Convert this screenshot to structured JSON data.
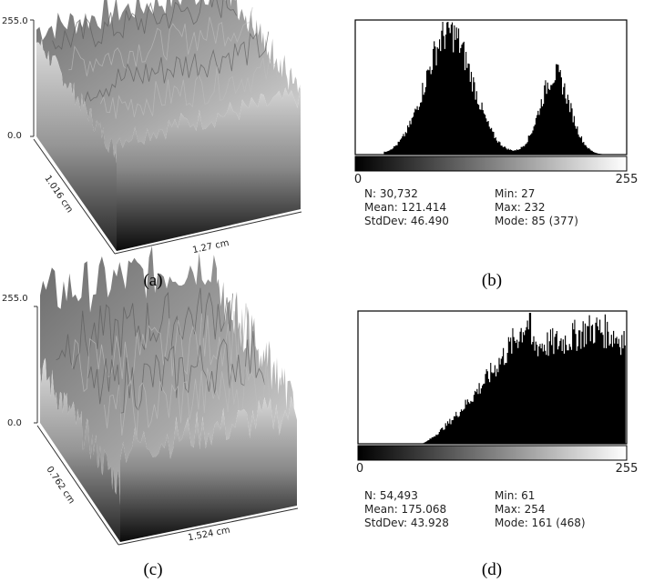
{
  "panels": [
    {
      "label": "(a)",
      "z_max": "255.0",
      "z_min": "0.0",
      "y_extent": "1.016 cm",
      "x_extent": "1.27 cm"
    },
    {
      "label": "(b)",
      "axis_min": "0",
      "axis_max": "255",
      "stats": [
        [
          "N: 30,732",
          "Min: 27"
        ],
        [
          "Mean: 121.414",
          "Max: 232"
        ],
        [
          "StdDev: 46.490",
          "Mode: 85 (377)"
        ]
      ]
    },
    {
      "label": "(c)",
      "z_max": "255.0",
      "z_min": "0.0",
      "y_extent": "0.762 cm",
      "x_extent": "1.524 cm"
    },
    {
      "label": "(d)",
      "axis_min": "0",
      "axis_max": "255",
      "stats": [
        [
          "N: 54,493",
          "Min: 61"
        ],
        [
          "Mean: 175.068",
          "Max: 254"
        ],
        [
          "StdDev: 43.928",
          "Mode: 161 (468)"
        ]
      ]
    }
  ]
}
